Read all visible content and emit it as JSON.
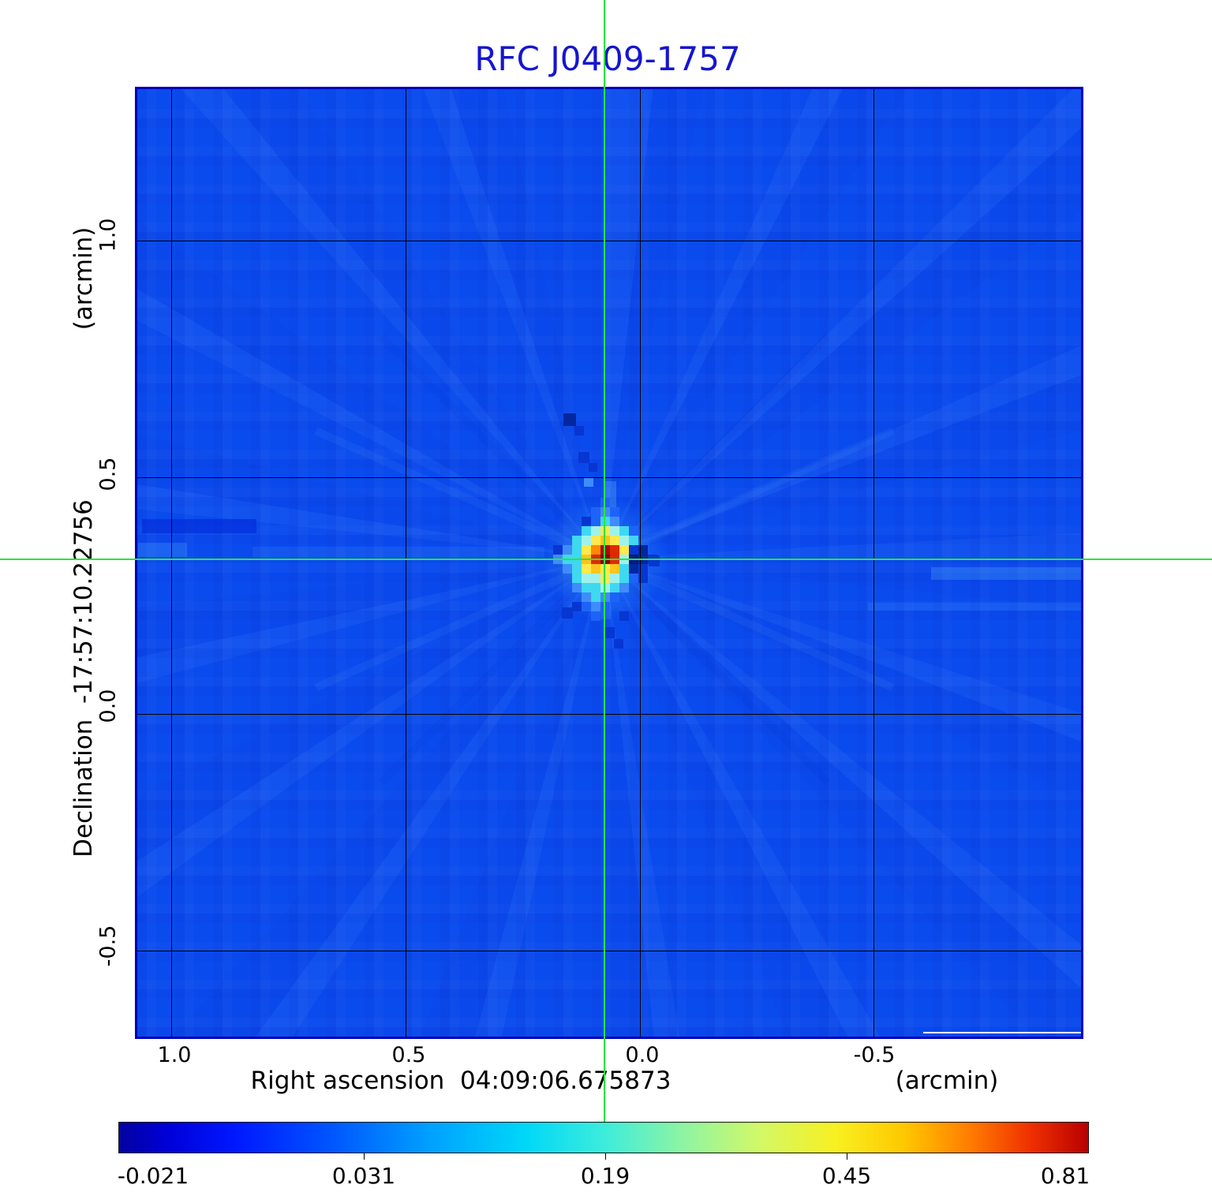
{
  "title": "RFC J0409-1757",
  "title_color": "#1515d0",
  "chart_data": {
    "type": "heatmap",
    "title": "RFC J0409-1757",
    "xlabel": "Right ascension  04:09:06.675873",
    "xunit": "(arcmin)",
    "ylabel": "Declination  -17:57:10.22756",
    "yunit": "(arcmin)",
    "x_ticks": [
      "1.0",
      "0.5",
      "0.0",
      "-0.5"
    ],
    "y_ticks": [
      "1.0",
      "0.5",
      "0.0",
      "-0.5"
    ],
    "x_range_arcmin": [
      1.08,
      -0.95
    ],
    "y_range_arcmin": [
      1.33,
      -0.69
    ],
    "grid": true,
    "background_value_color": "#0a4bee",
    "crosshair_color": "#28e63c",
    "source_center": {
      "ra_label": "04:09:06.675873",
      "dec_label": "-17:57:10.22756"
    },
    "colorbar": {
      "ticks": [
        "-0.021",
        "0.031",
        "0.19",
        "0.45",
        "0.81"
      ],
      "orientation": "horizontal",
      "colormap": "jet"
    },
    "pixel_size_px": 12,
    "palette": {
      "1": "#1e63f8",
      "2": "#3f8cfa",
      "c": "#3fd8f0",
      "C": "#9ff2ec",
      "y": "#ffe94d",
      "Y": "#ffc41c",
      "o": "#ff8a00",
      "r": "#e22800",
      "R": "#a31000",
      "m": "#7d0a08",
      "d": "#0736d2",
      "D": "#04279f",
      "N": "#021b7e"
    },
    "pixels": [
      "......1......",
      ".....121.....",
      "....d1c2.....",
      "....cCyCc1...",
      "...cCyYyCc...",
      ".d2cyoRrydD..",
      ".2ccYrmrCNDd.",
      "..2cyYyYcDd..",
      "...cCCyCc1d..",
      "...2ccCc2....",
      "....2c21.....",
      "...d121......",
      ".....1..d...."
    ],
    "speckles": [
      [
        540,
        411,
        16,
        "D"
      ],
      [
        554,
        427,
        12,
        "d"
      ],
      [
        559,
        460,
        14,
        "d"
      ],
      [
        572,
        474,
        11,
        "d"
      ],
      [
        566,
        492,
        12,
        "2"
      ],
      [
        591,
        682,
        14,
        "d"
      ],
      [
        604,
        697,
        12,
        "d"
      ],
      [
        538,
        657,
        14,
        "d"
      ],
      [
        648,
        591,
        14,
        "d"
      ]
    ]
  }
}
